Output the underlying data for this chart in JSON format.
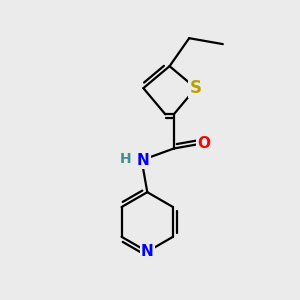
{
  "background_color": "#ebebeb",
  "atom_colors": {
    "S": "#b8a000",
    "O": "#ff0000",
    "N": "#0000ff",
    "H": "#409090"
  },
  "bond_color": "#000000",
  "bond_width": 1.6,
  "figsize": [
    3.0,
    3.0
  ],
  "dpi": 100,
  "xlim": [
    0,
    10
  ],
  "ylim": [
    0,
    10
  ]
}
